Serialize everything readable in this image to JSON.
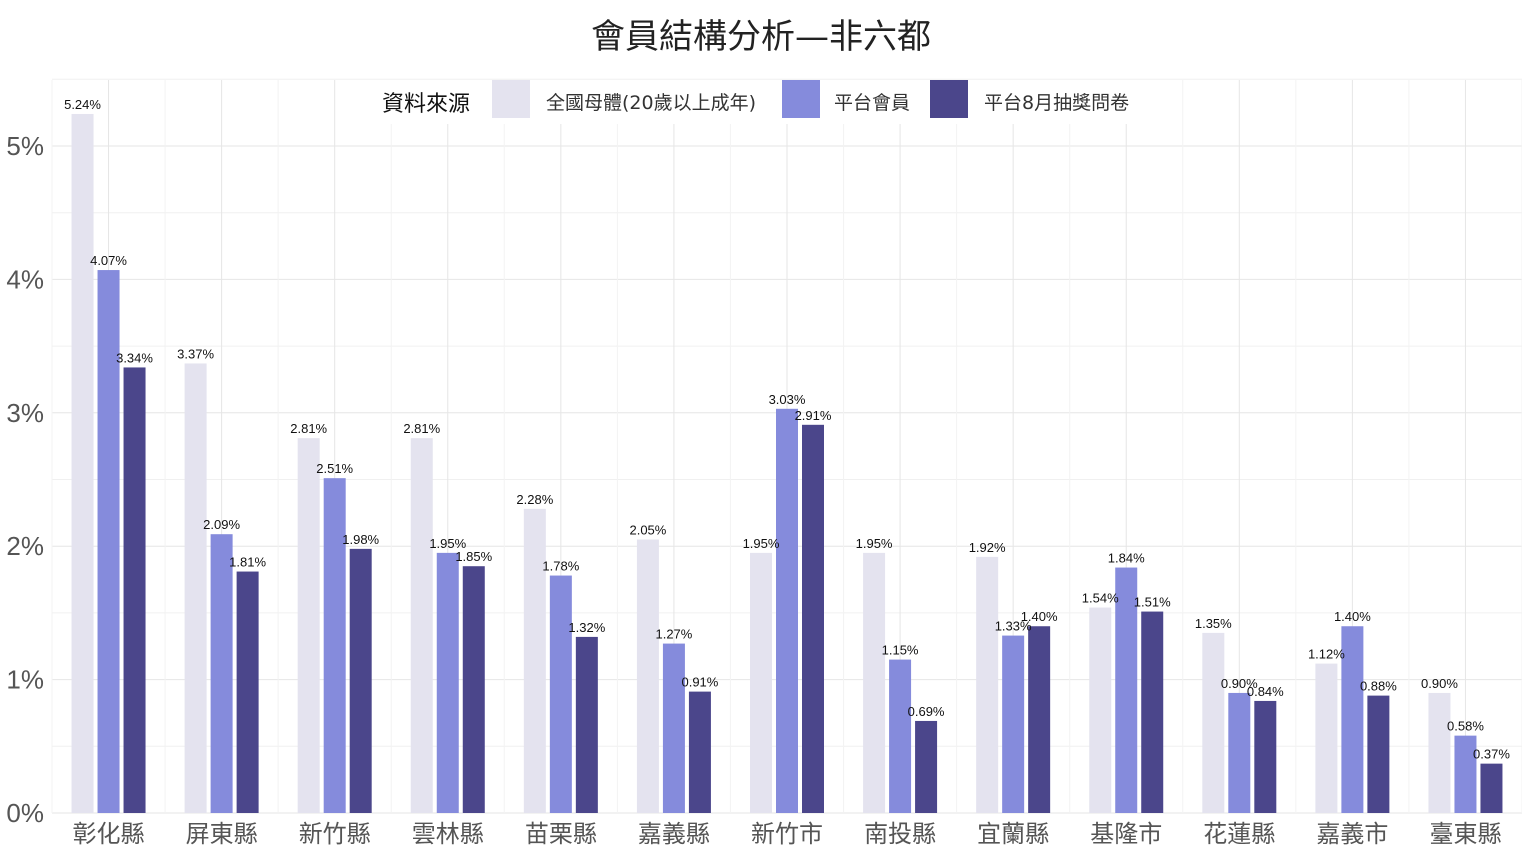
{
  "chart_data": {
    "type": "bar",
    "title": "會員結構分析—非六都",
    "xlabel": "",
    "ylabel": "",
    "ylim": [
      0,
      5.5
    ],
    "y_ticks": [
      "0%",
      "1%",
      "2%",
      "3%",
      "4%",
      "5%"
    ],
    "grid": true,
    "legend_title": "資料來源",
    "legend_position": "top",
    "categories": [
      "彰化縣",
      "屏東縣",
      "新竹縣",
      "雲林縣",
      "苗栗縣",
      "嘉義縣",
      "新竹市",
      "南投縣",
      "宜蘭縣",
      "基隆市",
      "花蓮縣",
      "嘉義市",
      "臺東縣"
    ],
    "series": [
      {
        "name": "全國母體(20歲以上成年)",
        "color": "#e4e3ef",
        "values": [
          5.24,
          3.37,
          2.81,
          2.81,
          2.28,
          2.05,
          1.95,
          1.95,
          1.92,
          1.54,
          1.35,
          1.12,
          0.9
        ],
        "labels": [
          "5.24%",
          "3.37%",
          "2.81%",
          "2.81%",
          "2.28%",
          "2.05%",
          "1.95%",
          "1.95%",
          "1.92%",
          "1.54%",
          "1.35%",
          "1.12%",
          "0.90%"
        ]
      },
      {
        "name": "平台會員",
        "color": "#858bdc",
        "values": [
          4.07,
          2.09,
          2.51,
          1.95,
          1.78,
          1.27,
          3.03,
          1.15,
          1.33,
          1.84,
          0.9,
          1.4,
          0.58
        ],
        "labels": [
          "4.07%",
          "2.09%",
          "2.51%",
          "1.95%",
          "1.78%",
          "1.27%",
          "3.03%",
          "1.15%",
          "1.33%",
          "1.84%",
          "0.90%",
          "1.40%",
          "0.58%"
        ]
      },
      {
        "name": "平台8月抽獎問卷",
        "color": "#4b468b",
        "values": [
          3.34,
          1.81,
          1.98,
          1.85,
          1.32,
          0.91,
          2.91,
          0.69,
          1.4,
          1.51,
          0.84,
          0.88,
          0.37
        ],
        "labels": [
          "3.34%",
          "1.81%",
          "1.98%",
          "1.85%",
          "1.32%",
          "0.91%",
          "2.91%",
          "0.69%",
          "1.40%",
          "1.51%",
          "0.84%",
          "0.88%",
          "0.37%"
        ]
      }
    ]
  }
}
